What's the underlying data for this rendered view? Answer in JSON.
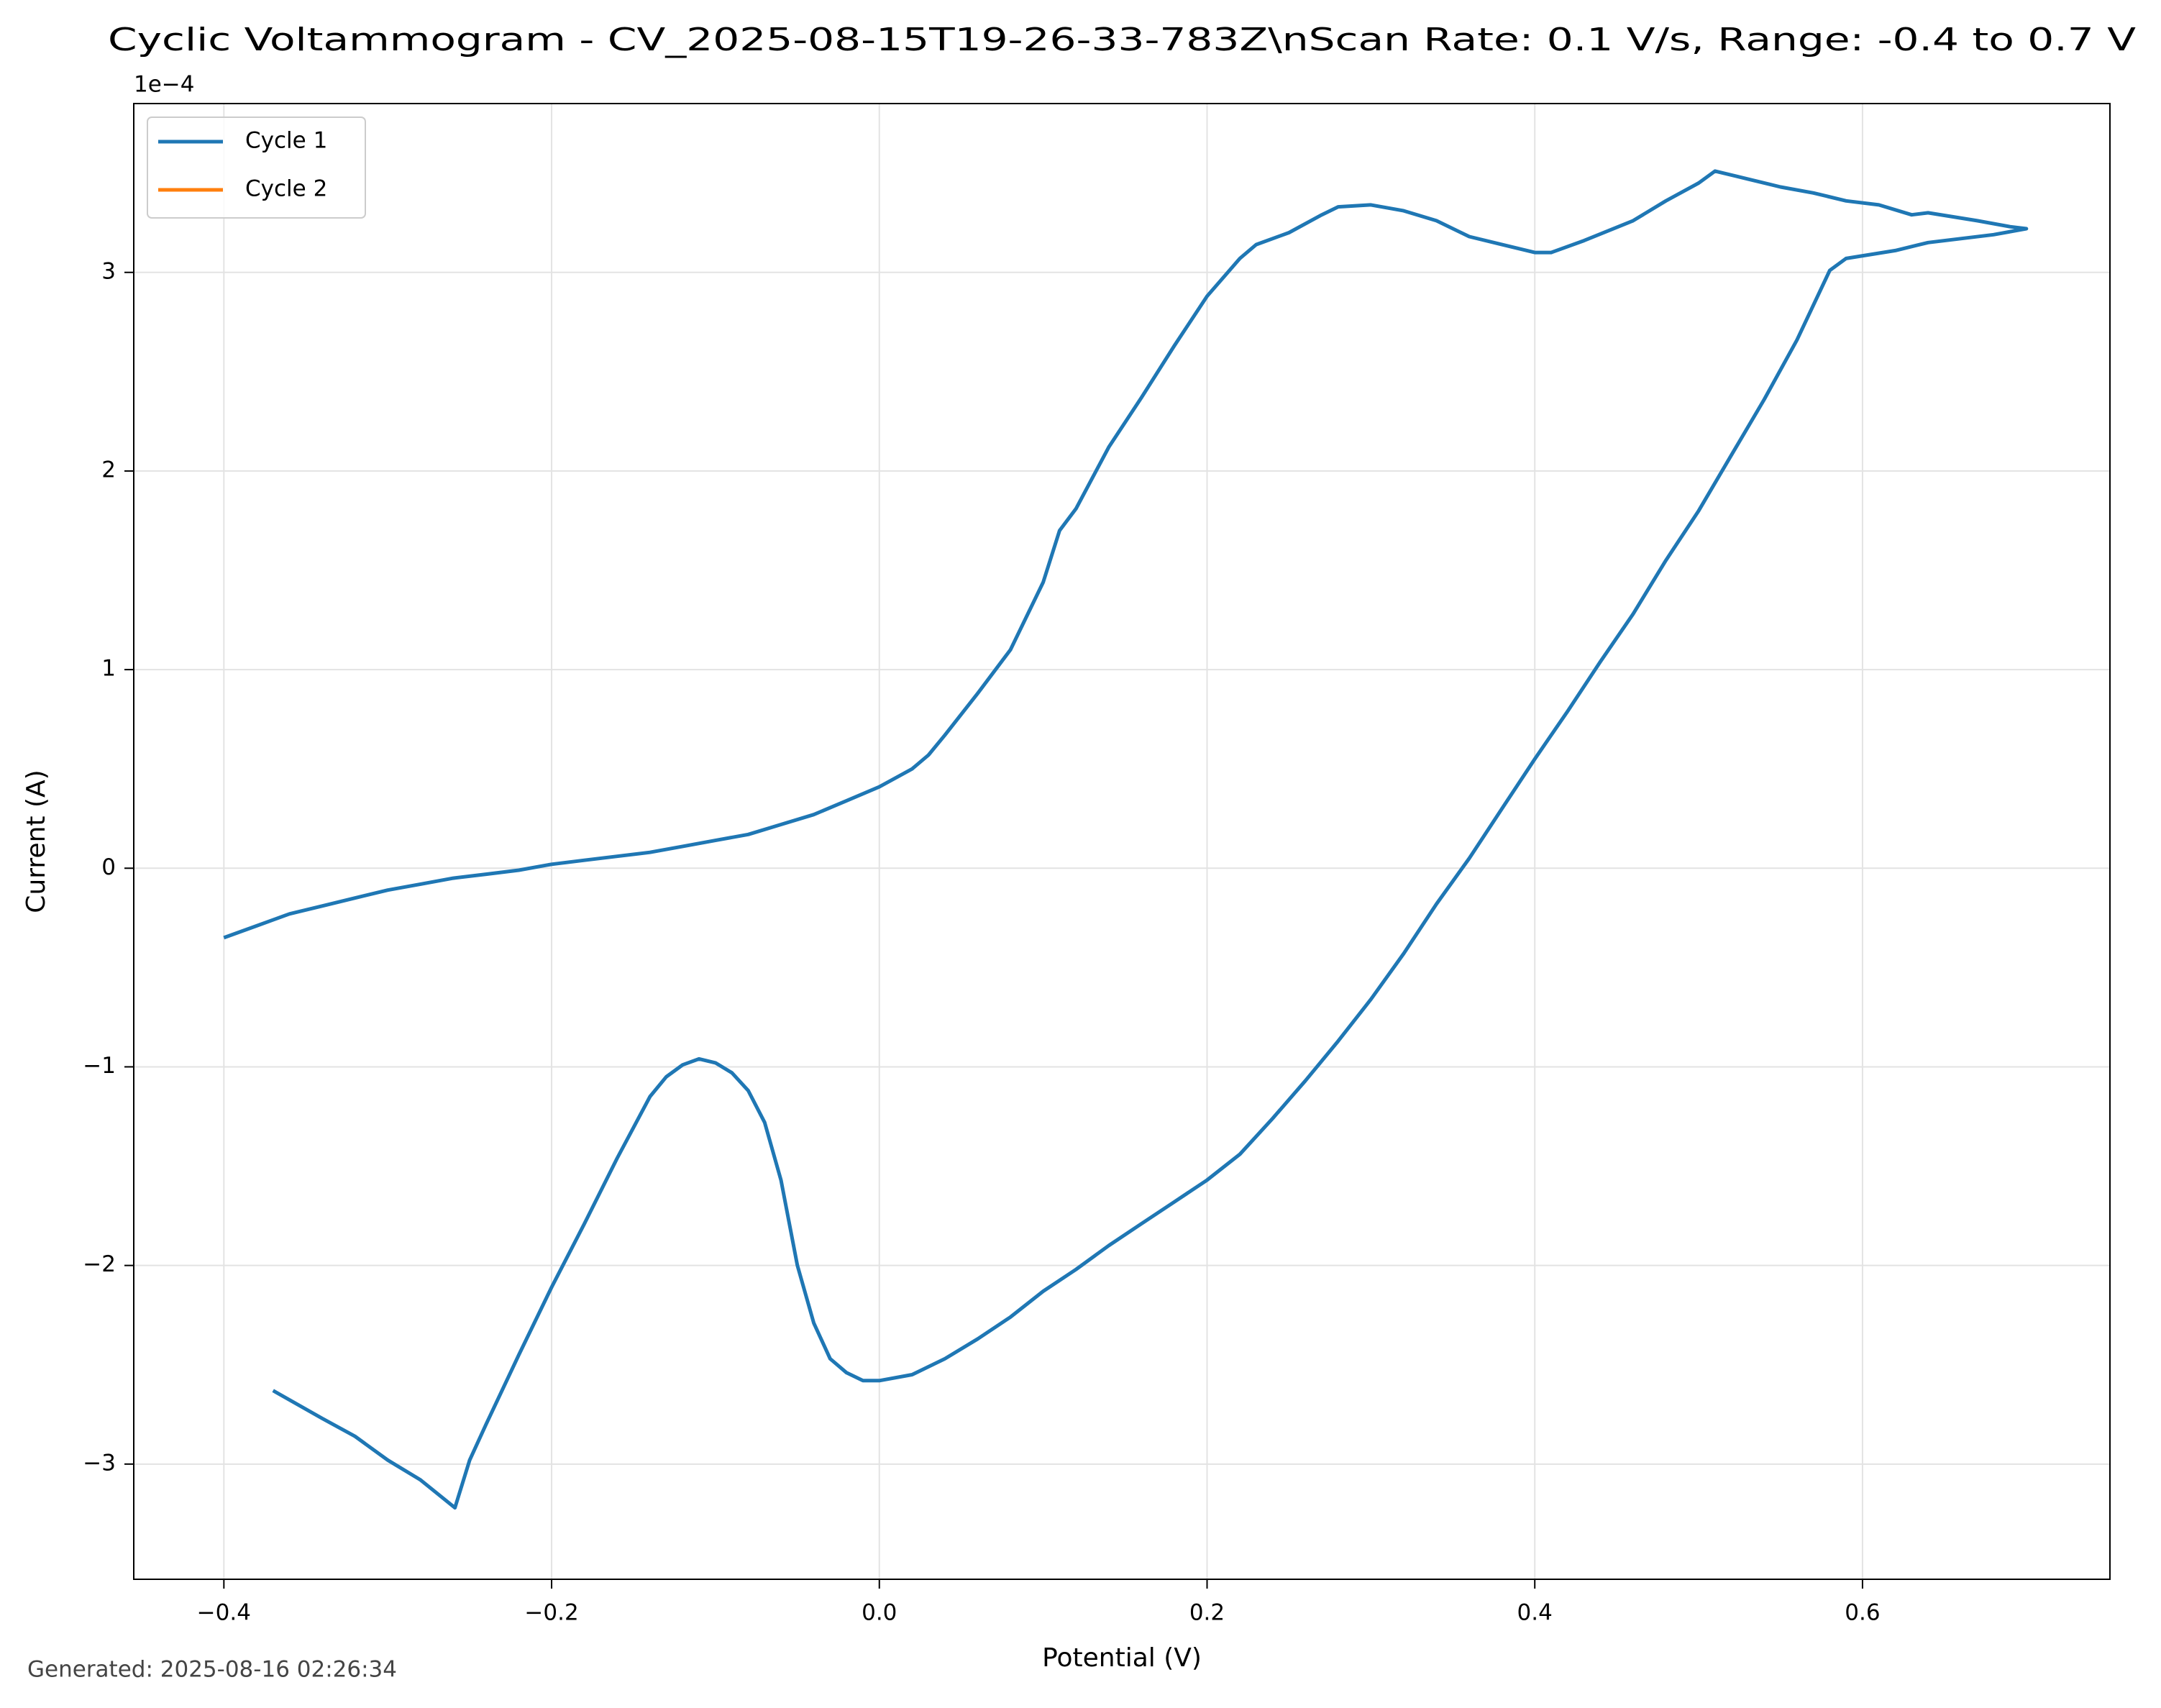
{
  "chart_data": {
    "type": "line",
    "title": "Cyclic Voltammogram - CV_2025-08-15T19-26-33-783Z\\nScan Rate: 0.1 V/s, Range: -0.4 to 0.7 V",
    "offset_label": "1e−4",
    "xlabel": "Potential (V)",
    "ylabel": "Current (A)",
    "footnote": "Generated: 2025-08-16 02:26:34",
    "xlim": [
      -0.455,
      0.751
    ],
    "ylim": [
      -3.58,
      3.85
    ],
    "xticks": [
      {
        "value": -0.4,
        "label": "−0.4"
      },
      {
        "value": -0.2,
        "label": "−0.2"
      },
      {
        "value": 0,
        "label": "0.0"
      },
      0.2,
      0.4,
      0.6
    ],
    "yticks": [
      {
        "value": -3,
        "label": "−3"
      },
      {
        "value": -2,
        "label": "−2"
      },
      {
        "value": -1,
        "label": "−1"
      },
      0,
      1,
      2,
      3
    ],
    "grid": true,
    "legend": "upper left",
    "series": [
      {
        "name": "Cycle 1",
        "color": "#1f77b4",
        "x": [
          -0.4,
          -0.38,
          -0.36,
          -0.34,
          -0.32,
          -0.3,
          -0.28,
          -0.26,
          -0.24,
          -0.22,
          -0.2,
          -0.18,
          -0.16,
          -0.14,
          -0.12,
          -0.1,
          -0.08,
          -0.06,
          -0.04,
          -0.02,
          0,
          0.02,
          0.03,
          0.04,
          0.06,
          0.08,
          0.1,
          0.11,
          0.12,
          0.14,
          0.16,
          0.18,
          0.2,
          0.22,
          0.23,
          0.25,
          0.27,
          0.28,
          0.3,
          0.32,
          0.34,
          0.36,
          0.38,
          0.4,
          0.41,
          0.43,
          0.46,
          0.48,
          0.5,
          0.51,
          0.53,
          0.55,
          0.57,
          0.59,
          0.61,
          0.63,
          0.64,
          0.67,
          0.69,
          0.7,
          0.68,
          0.64,
          0.62,
          0.59,
          0.58,
          0.56,
          0.54,
          0.52,
          0.5,
          0.48,
          0.46,
          0.44,
          0.42,
          0.4,
          0.38,
          0.36,
          0.34,
          0.32,
          0.3,
          0.28,
          0.26,
          0.24,
          0.22,
          0.2,
          0.18,
          0.16,
          0.14,
          0.12,
          0.1,
          0.08,
          0.06,
          0.04,
          0.02,
          0,
          -0.01,
          -0.02,
          -0.03,
          -0.04,
          -0.05,
          -0.06,
          -0.07,
          -0.08,
          -0.09,
          -0.1,
          -0.11,
          -0.12,
          -0.13,
          -0.14,
          -0.16,
          -0.18,
          -0.2,
          -0.22,
          -0.24,
          -0.25,
          -0.259,
          -0.28,
          -0.3,
          -0.32,
          -0.34,
          -0.37
        ],
        "values": [
          -0.35,
          -0.29,
          -0.23,
          -0.19,
          -0.15,
          -0.11,
          -0.08,
          -0.05,
          -0.03,
          -0.01,
          0.02,
          0.04,
          0.06,
          0.08,
          0.11,
          0.14,
          0.17,
          0.22,
          0.27,
          0.34,
          0.41,
          0.5,
          0.57,
          0.67,
          0.88,
          1.1,
          1.44,
          1.7,
          1.81,
          2.12,
          2.37,
          2.63,
          2.88,
          3.07,
          3.14,
          3.2,
          3.29,
          3.33,
          3.34,
          3.31,
          3.26,
          3.18,
          3.14,
          3.1,
          3.1,
          3.16,
          3.26,
          3.36,
          3.45,
          3.51,
          3.47,
          3.43,
          3.4,
          3.36,
          3.34,
          3.29,
          3.3,
          3.26,
          3.23,
          3.22,
          3.19,
          3.15,
          3.11,
          3.07,
          3.01,
          2.66,
          2.36,
          2.08,
          1.8,
          1.55,
          1.28,
          1.04,
          0.79,
          0.55,
          0.3,
          0.05,
          -0.18,
          -0.43,
          -0.66,
          -0.87,
          -1.07,
          -1.26,
          -1.44,
          -1.57,
          -1.68,
          -1.79,
          -1.9,
          -2.02,
          -2.13,
          -2.26,
          -2.37,
          -2.47,
          -2.55,
          -2.58,
          -2.58,
          -2.54,
          -2.47,
          -2.29,
          -2.0,
          -1.57,
          -1.28,
          -1.12,
          -1.03,
          -0.98,
          -0.96,
          -0.99,
          -1.05,
          -1.15,
          -1.46,
          -1.79,
          -2.11,
          -2.45,
          -2.8,
          -2.98,
          -3.22,
          -3.08,
          -2.98,
          -2.86,
          -2.77,
          -2.63
        ]
      },
      {
        "name": "Cycle 2",
        "color": "#ff7f0e",
        "x": [],
        "values": []
      }
    ]
  }
}
